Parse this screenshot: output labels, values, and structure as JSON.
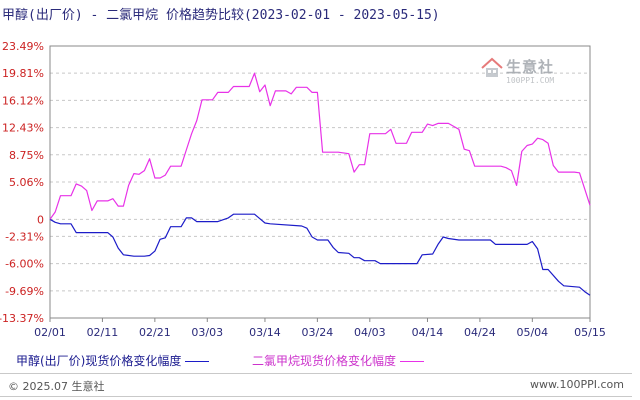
{
  "header": {
    "title": "甲醇(出厂价) - 二氯甲烷 价格趋势比较(2023-02-01 - 2023-05-15)"
  },
  "watermark": {
    "brand": "生意社",
    "url": "100PPI.COM"
  },
  "footer": {
    "copyright": "© 2025.07 生意社",
    "site": "www.100PPI.com"
  },
  "chart_data": {
    "type": "line",
    "title": "甲醇(出厂价) - 二氯甲烷 价格趋势比较(2023-02-01 - 2023-05-15)",
    "xlabel": "",
    "ylabel": "",
    "x_ticks": [
      "02/01",
      "02/11",
      "02/21",
      "03/03",
      "03/14",
      "03/24",
      "04/03",
      "04/14",
      "04/24",
      "05/04",
      "05/15"
    ],
    "y_ticks": [
      "23.49%",
      "19.81%",
      "16.12%",
      "12.43%",
      "8.75%",
      "5.06%",
      "0",
      "-2.31%",
      "-6.00%",
      "-9.69%",
      "-13.37%"
    ],
    "y_tick_values": [
      23.49,
      19.81,
      16.12,
      12.43,
      8.75,
      5.06,
      0,
      -2.31,
      -6.0,
      -9.69,
      -13.37
    ],
    "ylim": [
      -13.37,
      23.49
    ],
    "x_range": [
      "2023-02-01",
      "2023-05-15"
    ],
    "grid": "horizontal dashed",
    "legend_position": "bottom",
    "series": [
      {
        "name": "甲醇(出厂价)现货价格变化幅度",
        "color": "#1c1cc8",
        "points": [
          [
            "2023-02-01",
            0
          ],
          [
            "2023-02-02",
            -0.4
          ],
          [
            "2023-02-03",
            -0.6
          ],
          [
            "2023-02-05",
            -0.6
          ],
          [
            "2023-02-06",
            -1.8
          ],
          [
            "2023-02-09",
            -1.8
          ],
          [
            "2023-02-12",
            -1.8
          ],
          [
            "2023-02-13",
            -2.4
          ],
          [
            "2023-02-14",
            -3.9
          ],
          [
            "2023-02-15",
            -4.8
          ],
          [
            "2023-02-17",
            -5.0
          ],
          [
            "2023-02-19",
            -5.0
          ],
          [
            "2023-02-20",
            -4.9
          ],
          [
            "2023-02-21",
            -4.3
          ],
          [
            "2023-02-22",
            -2.7
          ],
          [
            "2023-02-23",
            -2.5
          ],
          [
            "2023-02-24",
            -1.0
          ],
          [
            "2023-02-26",
            -1.0
          ],
          [
            "2023-02-27",
            0.2
          ],
          [
            "2023-02-28",
            0.2
          ],
          [
            "2023-03-01",
            -0.3
          ],
          [
            "2023-03-05",
            -0.3
          ],
          [
            "2023-03-07",
            0.2
          ],
          [
            "2023-03-08",
            0.7
          ],
          [
            "2023-03-12",
            0.7
          ],
          [
            "2023-03-13",
            0.1
          ],
          [
            "2023-03-14",
            -0.5
          ],
          [
            "2023-03-15",
            -0.6
          ],
          [
            "2023-03-21",
            -0.9
          ],
          [
            "2023-03-22",
            -1.2
          ],
          [
            "2023-03-23",
            -2.4
          ],
          [
            "2023-03-24",
            -2.8
          ],
          [
            "2023-03-26",
            -2.8
          ],
          [
            "2023-03-27",
            -3.8
          ],
          [
            "2023-03-28",
            -4.5
          ],
          [
            "2023-03-30",
            -4.6
          ],
          [
            "2023-03-31",
            -5.2
          ],
          [
            "2023-04-01",
            -5.2
          ],
          [
            "2023-04-02",
            -5.6
          ],
          [
            "2023-04-04",
            -5.6
          ],
          [
            "2023-04-05",
            -6.0
          ],
          [
            "2023-04-12",
            -6.0
          ],
          [
            "2023-04-13",
            -4.8
          ],
          [
            "2023-04-15",
            -4.7
          ],
          [
            "2023-04-16",
            -3.4
          ],
          [
            "2023-04-17",
            -2.4
          ],
          [
            "2023-04-18",
            -2.6
          ],
          [
            "2023-04-20",
            -2.8
          ],
          [
            "2023-04-26",
            -2.8
          ],
          [
            "2023-04-27",
            -3.4
          ],
          [
            "2023-05-03",
            -3.4
          ],
          [
            "2023-05-04",
            -3.0
          ],
          [
            "2023-05-05",
            -4.0
          ],
          [
            "2023-05-06",
            -6.8
          ],
          [
            "2023-05-07",
            -6.8
          ],
          [
            "2023-05-09",
            -8.4
          ],
          [
            "2023-05-10",
            -9.0
          ],
          [
            "2023-05-13",
            -9.2
          ],
          [
            "2023-05-14",
            -9.8
          ],
          [
            "2023-05-15",
            -10.3
          ]
        ]
      },
      {
        "name": "二氯甲烷现货价格变化幅度",
        "color": "#e832e8",
        "points": [
          [
            "2023-02-01",
            0
          ],
          [
            "2023-02-02",
            1.0
          ],
          [
            "2023-02-03",
            3.2
          ],
          [
            "2023-02-05",
            3.2
          ],
          [
            "2023-02-06",
            4.8
          ],
          [
            "2023-02-07",
            4.5
          ],
          [
            "2023-02-08",
            3.9
          ],
          [
            "2023-02-09",
            1.2
          ],
          [
            "2023-02-10",
            2.5
          ],
          [
            "2023-02-12",
            2.5
          ],
          [
            "2023-02-13",
            2.8
          ],
          [
            "2023-02-14",
            1.8
          ],
          [
            "2023-02-15",
            1.8
          ],
          [
            "2023-02-16",
            4.6
          ],
          [
            "2023-02-17",
            6.2
          ],
          [
            "2023-02-18",
            6.1
          ],
          [
            "2023-02-19",
            6.6
          ],
          [
            "2023-02-20",
            8.2
          ],
          [
            "2023-02-21",
            5.6
          ],
          [
            "2023-02-22",
            5.6
          ],
          [
            "2023-02-23",
            6.0
          ],
          [
            "2023-02-24",
            7.2
          ],
          [
            "2023-02-26",
            7.2
          ],
          [
            "2023-02-27",
            9.4
          ],
          [
            "2023-02-28",
            11.6
          ],
          [
            "2023-03-01",
            13.4
          ],
          [
            "2023-03-02",
            16.2
          ],
          [
            "2023-03-04",
            16.2
          ],
          [
            "2023-03-05",
            17.2
          ],
          [
            "2023-03-07",
            17.2
          ],
          [
            "2023-03-08",
            18.0
          ],
          [
            "2023-03-10",
            18.0
          ],
          [
            "2023-03-11",
            18.0
          ],
          [
            "2023-03-12",
            19.8
          ],
          [
            "2023-03-13",
            17.3
          ],
          [
            "2023-03-14",
            18.2
          ],
          [
            "2023-03-15",
            15.4
          ],
          [
            "2023-03-16",
            17.4
          ],
          [
            "2023-03-18",
            17.4
          ],
          [
            "2023-03-19",
            17.0
          ],
          [
            "2023-03-20",
            17.9
          ],
          [
            "2023-03-22",
            17.9
          ],
          [
            "2023-03-23",
            17.2
          ],
          [
            "2023-03-24",
            17.2
          ],
          [
            "2023-03-25",
            9.1
          ],
          [
            "2023-03-28",
            9.1
          ],
          [
            "2023-03-30",
            8.9
          ],
          [
            "2023-03-31",
            6.4
          ],
          [
            "2023-04-01",
            7.4
          ],
          [
            "2023-04-02",
            7.4
          ],
          [
            "2023-04-03",
            11.6
          ],
          [
            "2023-04-06",
            11.6
          ],
          [
            "2023-04-07",
            12.2
          ],
          [
            "2023-04-08",
            10.3
          ],
          [
            "2023-04-10",
            10.3
          ],
          [
            "2023-04-11",
            11.8
          ],
          [
            "2023-04-13",
            11.8
          ],
          [
            "2023-04-14",
            12.9
          ],
          [
            "2023-04-15",
            12.7
          ],
          [
            "2023-04-16",
            13.0
          ],
          [
            "2023-04-18",
            13.0
          ],
          [
            "2023-04-19",
            12.6
          ],
          [
            "2023-04-20",
            12.2
          ],
          [
            "2023-04-21",
            9.5
          ],
          [
            "2023-04-22",
            9.3
          ],
          [
            "2023-04-23",
            7.2
          ],
          [
            "2023-04-28",
            7.2
          ],
          [
            "2023-04-29",
            7.0
          ],
          [
            "2023-04-30",
            6.6
          ],
          [
            "2023-05-01",
            4.6
          ],
          [
            "2023-05-02",
            9.2
          ],
          [
            "2023-05-03",
            10.0
          ],
          [
            "2023-05-04",
            10.2
          ],
          [
            "2023-05-05",
            11.0
          ],
          [
            "2023-05-06",
            10.8
          ],
          [
            "2023-05-07",
            10.3
          ],
          [
            "2023-05-08",
            7.3
          ],
          [
            "2023-05-09",
            6.4
          ],
          [
            "2023-05-12",
            6.4
          ],
          [
            "2023-05-13",
            6.3
          ],
          [
            "2023-05-15",
            1.9
          ]
        ]
      }
    ]
  }
}
